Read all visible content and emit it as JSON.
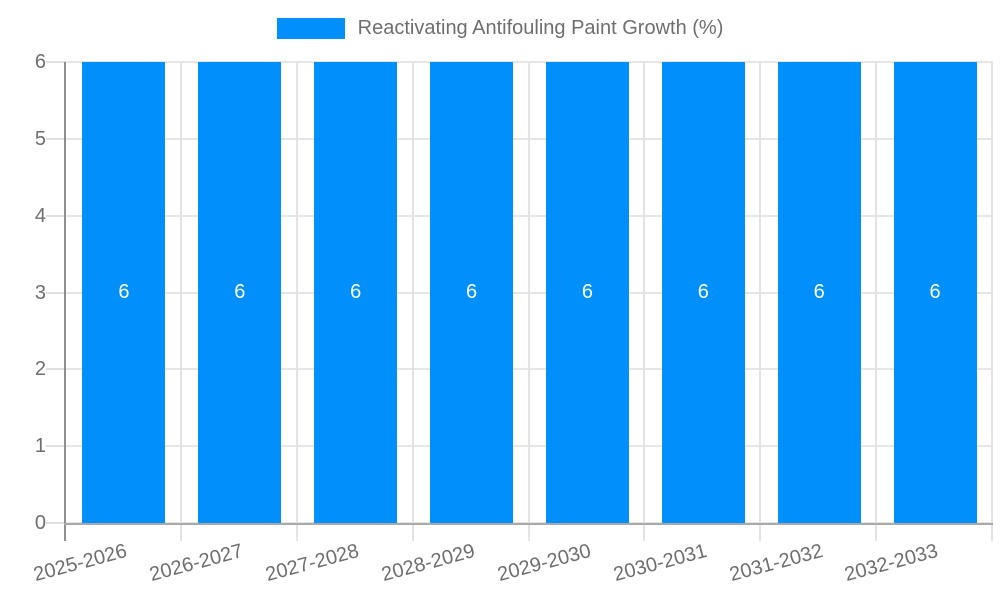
{
  "chart_data": {
    "type": "bar",
    "title": "Reactivating Antifouling Paint Growth (%)",
    "legend": [
      {
        "label": "Reactivating Antifouling Paint Growth (%)",
        "color": "#008FFB"
      }
    ],
    "legend_position": "top-center",
    "categories": [
      "2025-2026",
      "2026-2027",
      "2027-2028",
      "2028-2029",
      "2029-2030",
      "2030-2031",
      "2031-2032",
      "2032-2033"
    ],
    "values": [
      6,
      6,
      6,
      6,
      6,
      6,
      6,
      6
    ],
    "bar_labels": [
      "6",
      "6",
      "6",
      "6",
      "6",
      "6",
      "6",
      "6"
    ],
    "xlabel": "",
    "ylabel": "",
    "ylim": [
      0,
      6
    ],
    "yticks": [
      0,
      1,
      2,
      3,
      4,
      5,
      6
    ],
    "grid": "on",
    "colors": {
      "bar": "#008FFB",
      "grid_h": "#e6e6e6",
      "grid_v": "#e3e3e3",
      "axis_y": "#8f8f8f",
      "axis_x": "#a9a9a9",
      "tick_text": "#6e6e6e",
      "title_text": "#6e6e6e",
      "bar_label_text": "#ffffff",
      "background": "#ffffff"
    }
  }
}
